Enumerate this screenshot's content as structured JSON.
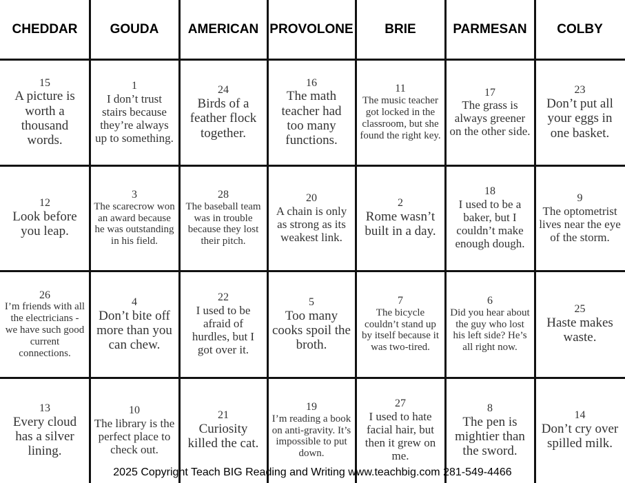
{
  "header": [
    "CHEDDAR",
    "GOUDA",
    "AMERICAN",
    "PROVOLONE",
    "BRIE",
    "PARMESAN",
    "COLBY"
  ],
  "table": {
    "rows": [
      [
        {
          "number": 15,
          "text": "A picture is worth a thousand words."
        },
        {
          "number": 1,
          "text": "I don’t trust stairs because they’re always up to something."
        },
        {
          "number": 24,
          "text": "Birds of a feather flock together."
        },
        {
          "number": 16,
          "text": "The math teacher had too many functions."
        },
        {
          "number": 11,
          "text": "The music teacher got locked in the classroom, but she found the right key."
        },
        {
          "number": 17,
          "text": "The grass is always greener on the other side."
        },
        {
          "number": 23,
          "text": "Don’t put all your eggs in one basket."
        }
      ],
      [
        {
          "number": 12,
          "text": "Look before you leap."
        },
        {
          "number": 3,
          "text": "The scarecrow won an award because he was outstanding in his field."
        },
        {
          "number": 28,
          "text": "The baseball team was in trouble because they lost their pitch."
        },
        {
          "number": 20,
          "text": "A chain is only as strong as its weakest link."
        },
        {
          "number": 2,
          "text": "Rome wasn’t built in a day."
        },
        {
          "number": 18,
          "text": "I used to be a baker, but I couldn’t make enough dough."
        },
        {
          "number": 9,
          "text": "The optometrist lives near the eye of the storm."
        }
      ],
      [
        {
          "number": 26,
          "text": "I’m friends with all the electricians - we have such good current connections."
        },
        {
          "number": 4,
          "text": "Don’t bite off more than you can chew."
        },
        {
          "number": 22,
          "text": "I used to be afraid of hurdles, but I got over it."
        },
        {
          "number": 5,
          "text": "Too many cooks spoil the broth."
        },
        {
          "number": 7,
          "text": "The bicycle couldn’t stand up by itself because it was two-tired."
        },
        {
          "number": 6,
          "text": "Did you hear about the guy who lost his left side? He’s all right now."
        },
        {
          "number": 25,
          "text": "Haste makes waste."
        }
      ],
      [
        {
          "number": 13,
          "text": "Every cloud has a silver lining."
        },
        {
          "number": 10,
          "text": "The library is the perfect place to check out."
        },
        {
          "number": 21,
          "text": "Curiosity killed the cat."
        },
        {
          "number": 19,
          "text": "I’m reading a book on anti-gravity. It’s impossible to put down."
        },
        {
          "number": 27,
          "text": "I used to hate facial hair, but then it grew on me."
        },
        {
          "number": 8,
          "text": "The pen is mightier than the sword."
        },
        {
          "number": 14,
          "text": "Don’t cry over spilled milk."
        }
      ]
    ]
  },
  "footer": "2025 Copyright Teach BIG Reading and Writing www.teachbig.com 281-549-4466"
}
